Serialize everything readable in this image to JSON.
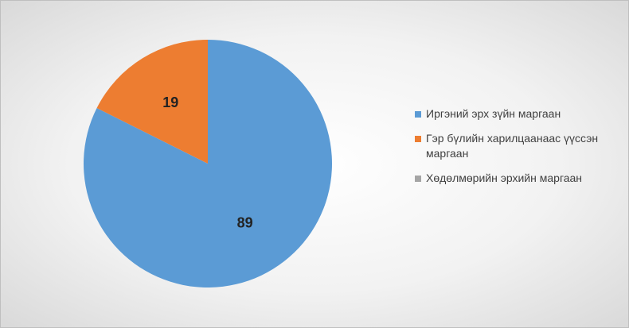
{
  "chart_data": {
    "type": "pie",
    "categories": [
      "Иргэний эрх зүйн маргаан",
      "Гэр бүлийн харилцаанаас үүссэн маргаан",
      "Хөдөлмөрийн эрхийн маргаан"
    ],
    "values": [
      89,
      19,
      0
    ],
    "colors": [
      "#5b9bd5",
      "#ed7d31",
      "#a5a5a5"
    ],
    "legend": "right"
  }
}
